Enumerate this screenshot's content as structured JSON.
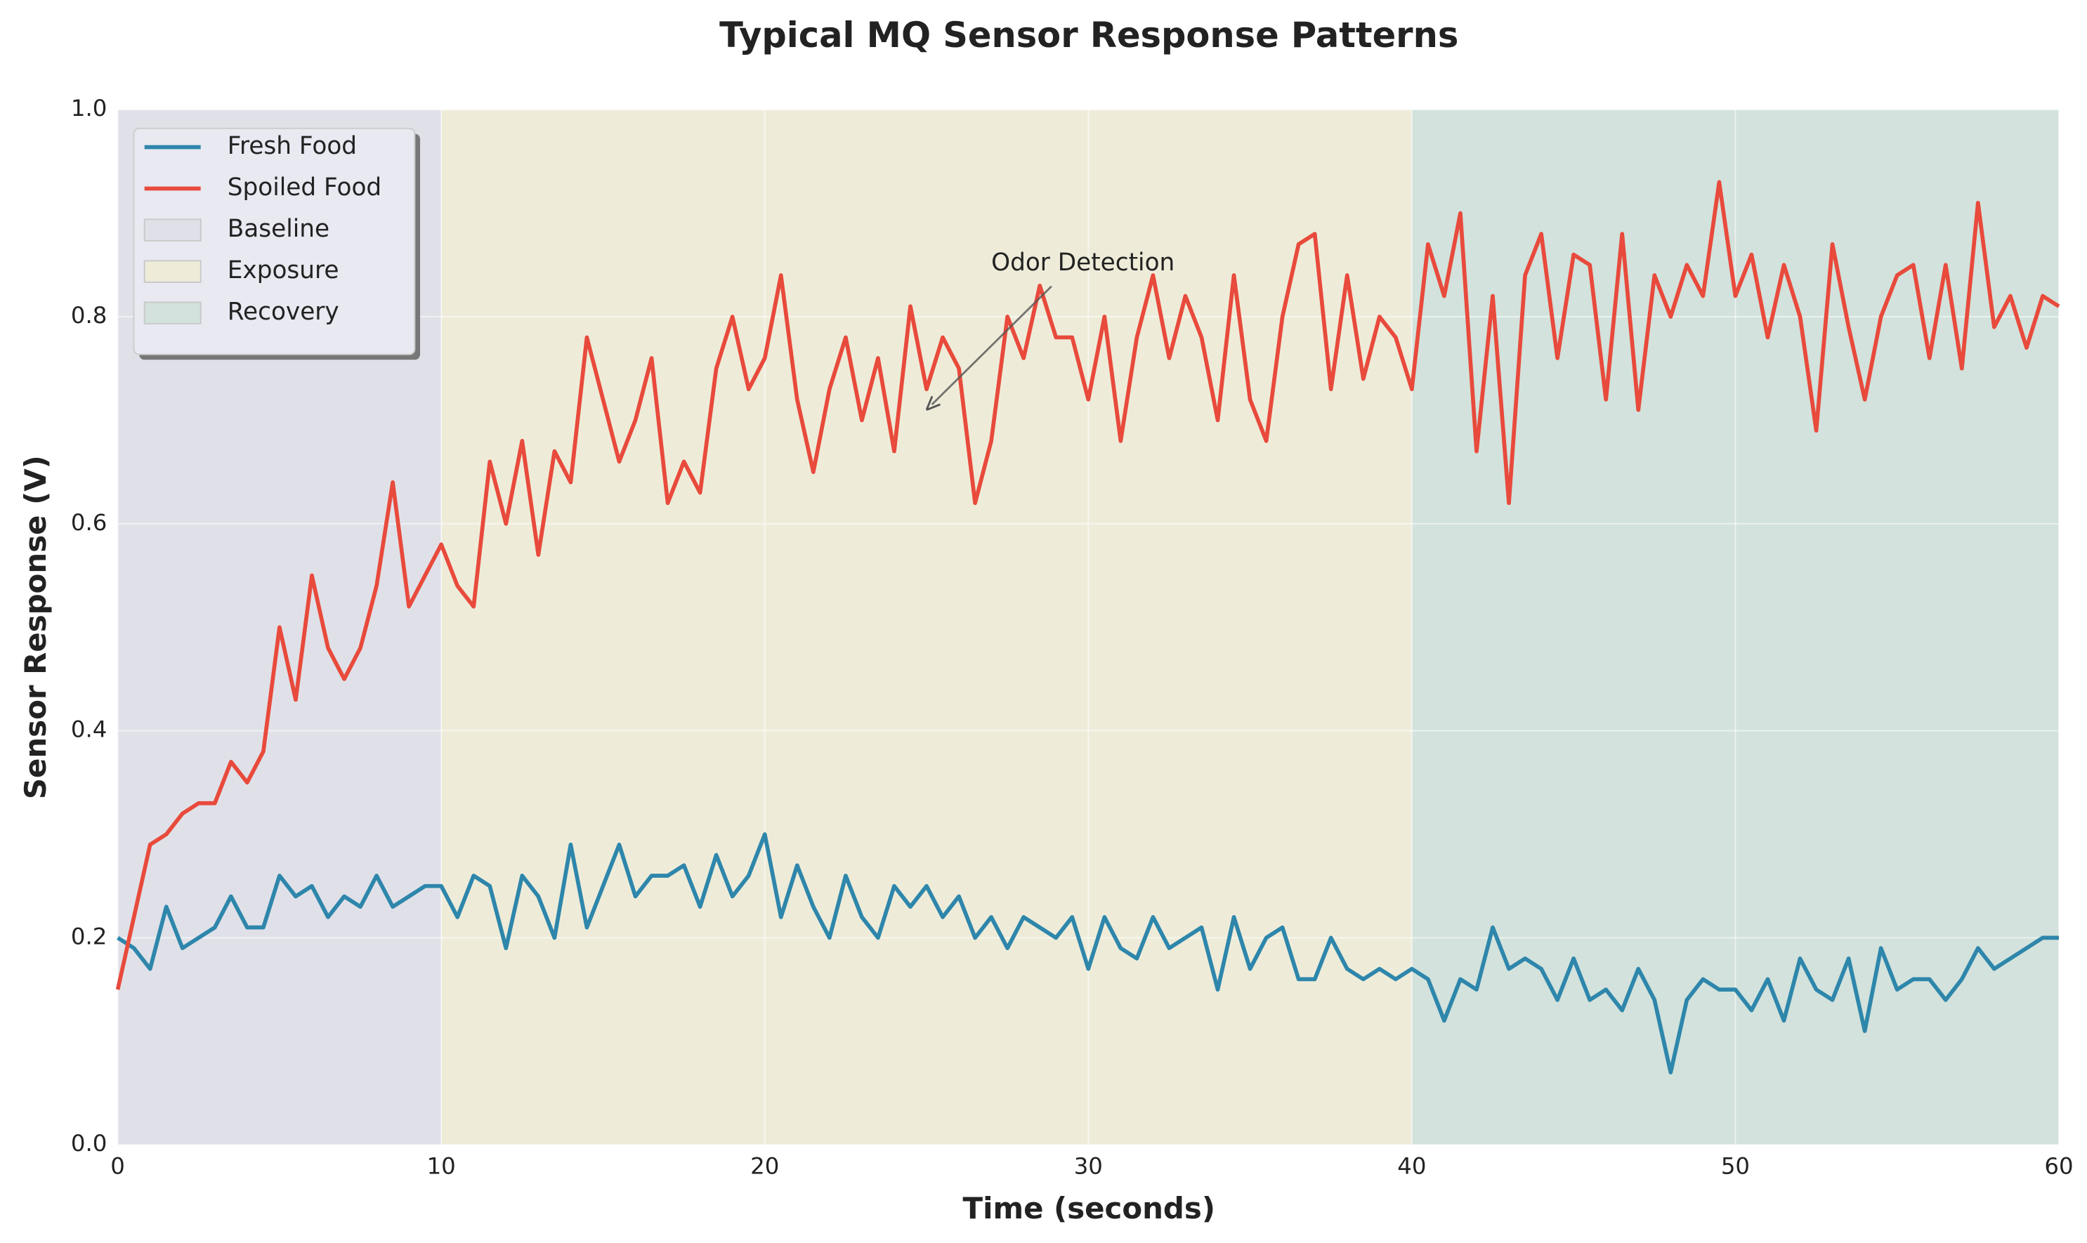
{
  "chart_data": {
    "type": "line",
    "title": "Typical MQ Sensor Response Patterns",
    "xlabel": "Time (seconds)",
    "ylabel": "Sensor Response (V)",
    "x": [
      0,
      0.5,
      1,
      1.5,
      2,
      2.5,
      3,
      3.5,
      4,
      4.5,
      5,
      5.5,
      6,
      6.5,
      7,
      7.5,
      8,
      8.5,
      9,
      9.5,
      10,
      10.5,
      11,
      11.5,
      12,
      12.5,
      13,
      13.5,
      14,
      14.5,
      15,
      15.5,
      16,
      16.5,
      17,
      17.5,
      18,
      18.5,
      19,
      19.5,
      20,
      20.5,
      21,
      21.5,
      22,
      22.5,
      23,
      23.5,
      24,
      24.5,
      25,
      25.5,
      26,
      26.5,
      27,
      27.5,
      28,
      28.5,
      29,
      29.5,
      30,
      30.5,
      31,
      31.5,
      32,
      32.5,
      33,
      33.5,
      34,
      34.5,
      35,
      35.5,
      36,
      36.5,
      37,
      37.5,
      38,
      38.5,
      39,
      39.5,
      40,
      40.5,
      41,
      41.5,
      42,
      42.5,
      43,
      43.5,
      44,
      44.5,
      45,
      45.5,
      46,
      46.5,
      47,
      47.5,
      48,
      48.5,
      49,
      49.5,
      50,
      50.5,
      51,
      51.5,
      52,
      52.5,
      53,
      53.5,
      54,
      54.5,
      55,
      55.5,
      56,
      56.5,
      57,
      57.5,
      58,
      58.5,
      59,
      59.5,
      60
    ],
    "series": [
      {
        "name": "Fresh Food",
        "color": "#2e86ab",
        "values": [
          0.2,
          0.19,
          0.17,
          0.23,
          0.19,
          0.2,
          0.21,
          0.24,
          0.21,
          0.21,
          0.26,
          0.24,
          0.25,
          0.22,
          0.24,
          0.23,
          0.26,
          0.23,
          0.24,
          0.25,
          0.25,
          0.22,
          0.26,
          0.25,
          0.19,
          0.26,
          0.24,
          0.2,
          0.29,
          0.21,
          0.25,
          0.29,
          0.24,
          0.26,
          0.26,
          0.27,
          0.23,
          0.28,
          0.24,
          0.26,
          0.3,
          0.22,
          0.27,
          0.23,
          0.2,
          0.26,
          0.22,
          0.2,
          0.25,
          0.23,
          0.25,
          0.22,
          0.24,
          0.2,
          0.22,
          0.19,
          0.22,
          0.21,
          0.2,
          0.22,
          0.17,
          0.22,
          0.19,
          0.18,
          0.22,
          0.19,
          0.2,
          0.21,
          0.15,
          0.22,
          0.17,
          0.2,
          0.21,
          0.16,
          0.16,
          0.2,
          0.17,
          0.16,
          0.17,
          0.16,
          0.17,
          0.16,
          0.12,
          0.16,
          0.15,
          0.21,
          0.17,
          0.18,
          0.17,
          0.14,
          0.18,
          0.14,
          0.15,
          0.13,
          0.17,
          0.14,
          0.07,
          0.14,
          0.16,
          0.15,
          0.15,
          0.13,
          0.16,
          0.12,
          0.18,
          0.15,
          0.14,
          0.18,
          0.11,
          0.19,
          0.15,
          0.16,
          0.16,
          0.14,
          0.16,
          0.19,
          0.17,
          0.18,
          0.19,
          0.2,
          0.2
        ]
      },
      {
        "name": "Spoiled Food",
        "color": "#e84a3c",
        "values": [
          0.15,
          0.22,
          0.29,
          0.3,
          0.32,
          0.33,
          0.33,
          0.37,
          0.35,
          0.38,
          0.5,
          0.43,
          0.55,
          0.48,
          0.45,
          0.48,
          0.54,
          0.64,
          0.52,
          0.55,
          0.58,
          0.54,
          0.52,
          0.66,
          0.6,
          0.68,
          0.57,
          0.67,
          0.64,
          0.78,
          0.72,
          0.66,
          0.7,
          0.76,
          0.62,
          0.66,
          0.63,
          0.75,
          0.8,
          0.73,
          0.76,
          0.84,
          0.72,
          0.65,
          0.73,
          0.78,
          0.7,
          0.76,
          0.67,
          0.81,
          0.73,
          0.78,
          0.75,
          0.62,
          0.68,
          0.8,
          0.76,
          0.83,
          0.78,
          0.78,
          0.72,
          0.8,
          0.68,
          0.78,
          0.84,
          0.76,
          0.82,
          0.78,
          0.7,
          0.84,
          0.72,
          0.68,
          0.8,
          0.87,
          0.88,
          0.73,
          0.84,
          0.74,
          0.8,
          0.78,
          0.73,
          0.87,
          0.82,
          0.9,
          0.67,
          0.82,
          0.62,
          0.84,
          0.88,
          0.76,
          0.86,
          0.85,
          0.72,
          0.88,
          0.71,
          0.84,
          0.8,
          0.85,
          0.82,
          0.93,
          0.82,
          0.86,
          0.78,
          0.85,
          0.8,
          0.69,
          0.87,
          0.79,
          0.72,
          0.8,
          0.84,
          0.85,
          0.76,
          0.85,
          0.75,
          0.91,
          0.79,
          0.82,
          0.77,
          0.82,
          0.81
        ]
      }
    ],
    "regions": [
      {
        "name": "Baseline",
        "start": 0,
        "end": 10,
        "color": "#e0e1e8"
      },
      {
        "name": "Exposure",
        "start": 10,
        "end": 40,
        "color": "#eeecd9"
      },
      {
        "name": "Recovery",
        "start": 40,
        "end": 60,
        "color": "#d3e2dc"
      }
    ],
    "annotation": {
      "text": "Odor Detection",
      "xy": [
        25,
        0.71
      ],
      "xytext": [
        27,
        0.85
      ]
    },
    "xlim": [
      0,
      60
    ],
    "xticks": [
      0,
      10,
      20,
      30,
      40,
      50,
      60
    ],
    "ylim": [
      0,
      1
    ],
    "yticks": [
      {
        "value": 0,
        "label": "0.0"
      },
      0.2,
      0.4,
      0.6,
      0.8,
      {
        "value": 1,
        "label": "1.0"
      }
    ],
    "grid": true,
    "legend": "upper left"
  }
}
